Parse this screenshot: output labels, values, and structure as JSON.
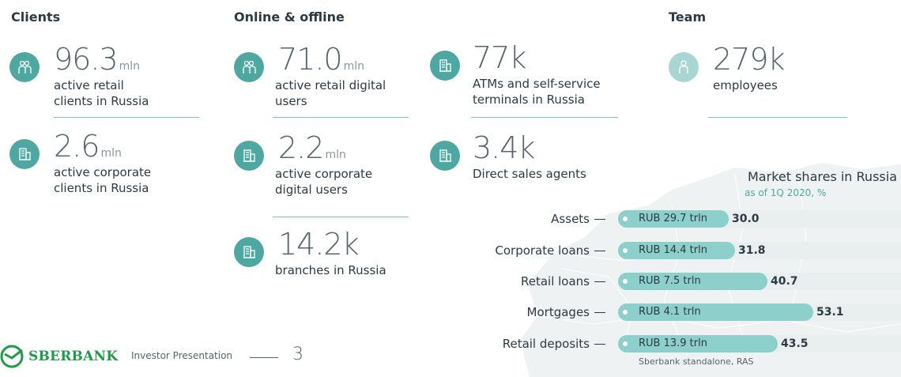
{
  "sections": {
    "clients": "Clients",
    "online": "Online & offline",
    "team": "Team"
  },
  "stats": {
    "retail_clients": {
      "value": "96.3",
      "unit": "mln",
      "desc": "active retail\nclients in Russia",
      "icon": "people-icon"
    },
    "corporate_clients": {
      "value": "2.6",
      "unit": "mln",
      "desc": "active corporate\nclients in Russia",
      "icon": "building-icon"
    },
    "retail_digital": {
      "value": "71.0",
      "unit": "mln",
      "desc": "active retail digital\nusers",
      "icon": "people-icon"
    },
    "corporate_digital": {
      "value": "2.2",
      "unit": "mln",
      "desc": "active corporate\ndigital users",
      "icon": "building-icon"
    },
    "branches": {
      "value": "14.2k",
      "unit": "",
      "desc": "branches in Russia",
      "icon": "building-icon"
    },
    "atms": {
      "value": "77k",
      "unit": "",
      "desc": "ATMs and self-service\nterminals in Russia",
      "icon": "building-icon"
    },
    "sales_agents": {
      "value": "3.4k",
      "unit": "",
      "desc": "Direct sales agents",
      "icon": "building-icon"
    },
    "employees": {
      "value": "279k",
      "unit": "",
      "desc": "employees",
      "icon": "person-icon"
    }
  },
  "market_shares": {
    "title": "Market shares in Russia",
    "subtitle": "as of 1Q 2020, %",
    "note": "Sberbank standalone, RAS",
    "rows": [
      {
        "label": "Assets",
        "amount": "RUB 29.7 trln",
        "share": "30.0"
      },
      {
        "label": "Corporate loans",
        "amount": "RUB 14.4 trln",
        "share": "31.8"
      },
      {
        "label": "Retail loans",
        "amount": "RUB 7.5 trln",
        "share": "40.7"
      },
      {
        "label": "Mortgages",
        "amount": "RUB 4.1 trln",
        "share": "53.1"
      },
      {
        "label": "Retail deposits",
        "amount": "RUB 13.9 trln",
        "share": "43.5"
      }
    ]
  },
  "chart_data": {
    "type": "bar",
    "title": "Market shares in Russia",
    "subtitle": "as of 1Q 2020, %",
    "categories": [
      "Assets",
      "Corporate loans",
      "Retail loans",
      "Mortgages",
      "Retail deposits"
    ],
    "values": [
      30.0,
      31.8,
      40.7,
      53.1,
      43.5
    ],
    "amounts": [
      "RUB 29.7 trln",
      "RUB 14.4 trln",
      "RUB 7.5 trln",
      "RUB 4.1 trln",
      "RUB 13.9 trln"
    ],
    "orientation": "horizontal",
    "ylim": [
      0,
      100
    ]
  },
  "footer": {
    "brand": "SBERBANK",
    "title": "Investor Presentation",
    "page": "3"
  },
  "colors": {
    "accent": "#4fa7a2",
    "accent_light": "#a9d6d3",
    "bar": "#8ccfcb",
    "brand_green": "#1f9b4a"
  }
}
